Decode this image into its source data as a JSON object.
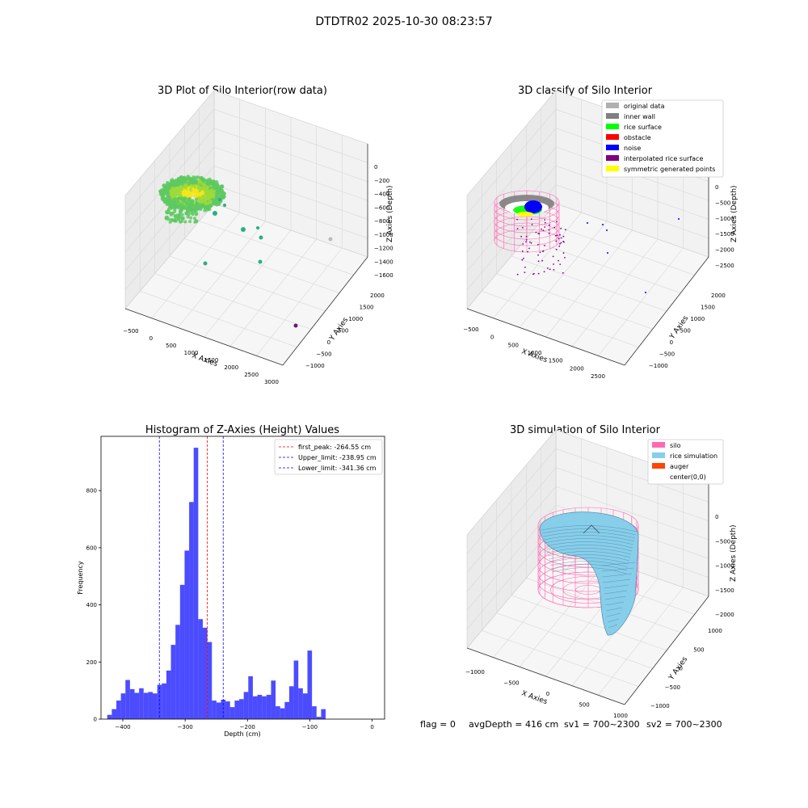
{
  "figure": {
    "suptitle": "DTDTR02 2025-10-30 08:23:57"
  },
  "status_line": {
    "flag": "flag = 0",
    "avg_depth": "avgDepth = 416 cm",
    "sv1": "sv1 = 700~2300",
    "sv2": "sv2 = 700~2300"
  },
  "chart_data": [
    {
      "type": "scatter3d",
      "title": "3D Plot of Silo Interior(row data)",
      "xlabel": "X Axies",
      "ylabel": "Y Axies",
      "zlabel": "Z Axies (Depth)",
      "x_ticks": [
        "−500",
        "0",
        "500",
        "1000",
        "1500",
        "2000",
        "2500",
        "3000"
      ],
      "y_ticks": [
        "−1000",
        "−500",
        "0",
        "500",
        "1000",
        "1500",
        "2000"
      ],
      "z_ticks": [
        "0",
        "−200",
        "−400",
        "−600",
        "−800",
        "−1000",
        "−1200",
        "−1400",
        "−1600"
      ],
      "colors": [
        "#f5e51b",
        "#9ed93a",
        "#5ec962",
        "#2ab07f",
        "#21918c",
        "#bbbbbb",
        "#6a1b6b"
      ]
    },
    {
      "type": "scatter3d",
      "title": "3D classify of Silo Interior",
      "xlabel": "X Axies",
      "ylabel": "Y Axies",
      "zlabel": "Z Axies (Depth)",
      "x_ticks": [
        "−500",
        "0",
        "500",
        "1000",
        "1500",
        "2000",
        "2500"
      ],
      "y_ticks": [
        "−1000",
        "−500",
        "0",
        "500",
        "1000",
        "1500",
        "2000"
      ],
      "z_ticks": [
        "0",
        "−500",
        "−1000",
        "−1500",
        "−2000",
        "−2500"
      ],
      "legend": [
        {
          "label": "original data",
          "color": "#b0b0b0"
        },
        {
          "label": "inner wall",
          "color": "#808080"
        },
        {
          "label": "rice surface",
          "color": "#00ff00"
        },
        {
          "label": "obstacle",
          "color": "#ff0000"
        },
        {
          "label": "noise",
          "color": "#0000ff"
        },
        {
          "label": "interpolated rice surface",
          "color": "#800080"
        },
        {
          "label": "symmetric generated points",
          "color": "#ffff00"
        }
      ]
    },
    {
      "type": "bar",
      "title": "Histogram of Z-Axies (Height) Values",
      "xlabel": "Depth (cm)",
      "ylabel": "Frequency",
      "xlim": [
        -435,
        20
      ],
      "ylim": [
        0,
        990
      ],
      "x_ticks": [
        -400,
        -300,
        -200,
        -100,
        0
      ],
      "y_ticks": [
        0,
        200,
        400,
        600,
        800
      ],
      "bin_start": -425,
      "bin_width": 7.3,
      "values": [
        15,
        35,
        65,
        90,
        137,
        105,
        92,
        108,
        92,
        95,
        90,
        120,
        125,
        170,
        260,
        330,
        470,
        590,
        760,
        950,
        350,
        320,
        270,
        65,
        58,
        68,
        62,
        42,
        65,
        70,
        95,
        150,
        80,
        85,
        80,
        85,
        135,
        45,
        38,
        60,
        115,
        205,
        108,
        90,
        240,
        45,
        8,
        35
      ],
      "bar_color": "#0000ff",
      "lines": [
        {
          "label": "first_peak: -264.55 cm",
          "x": -264.55,
          "color": "#ff0000"
        },
        {
          "label": "Upper_limit: -238.95 cm",
          "x": -238.95,
          "color": "#0000ff"
        },
        {
          "label": "Lower_limit: -341.36 cm",
          "x": -341.36,
          "color": "#0000ff"
        }
      ],
      "legend_position": "top-right"
    },
    {
      "type": "surface3d",
      "title": "3D simulation of Silo Interior",
      "xlabel": "X Axies",
      "ylabel": "Y Axies",
      "zlabel": "Z Axies (Depth)",
      "x_ticks": [
        "−1000",
        "−500",
        "0",
        "500",
        "1000"
      ],
      "y_ticks": [
        "−1000",
        "−500",
        "0",
        "500",
        "1000"
      ],
      "z_ticks": [
        "0",
        "−500",
        "−1000",
        "−1500",
        "−2000"
      ],
      "legend": [
        {
          "label": "silo",
          "color": "#ff69b4"
        },
        {
          "label": "rice simulation",
          "color": "#87ceeb"
        },
        {
          "label": "auger",
          "color": "#ff4500"
        },
        {
          "label": "center(0,0)",
          "color": "#ffffff"
        }
      ]
    }
  ]
}
